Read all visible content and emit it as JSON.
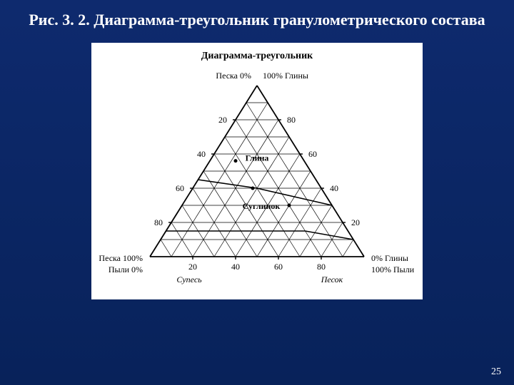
{
  "slide": {
    "title": "Рис. 3. 2. Диаграмма-треугольник гранулометрического состава",
    "number": "25",
    "bg_top": "#0e2a6e",
    "bg_bottom": "#08225a"
  },
  "diagram": {
    "type": "ternary",
    "panel_bg": "#ffffff",
    "stroke": "#000000",
    "line_width": 1,
    "title": "Диаграмма-треугольник",
    "title_fontsize": 14,
    "label_fontsize": 12,
    "tick_fontsize": 12,
    "apex_top_left": "Песка 0%",
    "apex_top_right": "100% Глины",
    "apex_bottom_left_top": "Песка 100%",
    "apex_bottom_left_bot": "Пыли 0%",
    "apex_bottom_right_top": "0% Глины",
    "apex_bottom_right_bot": "100% Пыли",
    "left_ticks": [
      20,
      40,
      60,
      80
    ],
    "right_ticks": [
      80,
      60,
      40,
      20
    ],
    "bottom_ticks": [
      20,
      40,
      60,
      80
    ],
    "bottom_region_left": "Супесь",
    "bottom_region_right": "Песок",
    "region_suglinok": "Суглинок",
    "region_glina": "Глина",
    "divisions": 10,
    "boundary_lines": [
      {
        "a": 0.0,
        "b": 1.0,
        "c": 0.0,
        "a2": 1.0,
        "b2": 0.0,
        "c2": 0.0,
        "note": "base"
      }
    ],
    "inner_curves": [
      [
        [
          0.55,
          0.45,
          0.0
        ],
        [
          0.3,
          0.4,
          0.3
        ]
      ],
      [
        [
          0.3,
          0.4,
          0.3
        ],
        [
          0.0,
          0.3,
          0.7
        ]
      ],
      [
        [
          0.85,
          0.15,
          0.0
        ],
        [
          0.2,
          0.15,
          0.65
        ]
      ],
      [
        [
          0.2,
          0.15,
          0.65
        ],
        [
          0.0,
          0.1,
          0.9
        ]
      ]
    ],
    "points": [
      {
        "a": 0.32,
        "b": 0.4,
        "c": 0.28
      },
      {
        "a": 0.2,
        "b": 0.3,
        "c": 0.5
      },
      {
        "a": 0.32,
        "b": 0.56,
        "c": 0.12
      }
    ]
  }
}
